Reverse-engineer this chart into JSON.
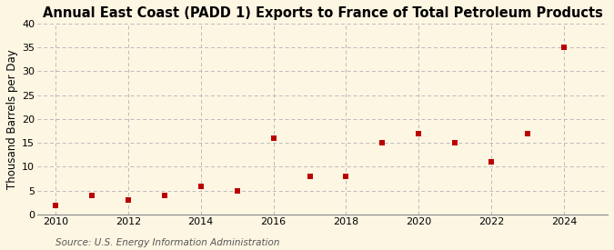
{
  "title": "Annual East Coast (PADD 1) Exports to France of Total Petroleum Products",
  "ylabel": "Thousand Barrels per Day",
  "source": "Source: U.S. Energy Information Administration",
  "x": [
    2010,
    2011,
    2012,
    2013,
    2014,
    2015,
    2016,
    2017,
    2018,
    2019,
    2020,
    2021,
    2022,
    2023,
    2024
  ],
  "y": [
    2.0,
    4.0,
    3.0,
    4.0,
    6.0,
    5.0,
    16.0,
    8.0,
    8.0,
    15.0,
    17.0,
    15.0,
    11.0,
    17.0,
    35.0
  ],
  "marker_color": "#bb0000",
  "marker": "s",
  "marker_size": 4,
  "ylim": [
    0,
    40
  ],
  "yticks": [
    0,
    5,
    10,
    15,
    20,
    25,
    30,
    35,
    40
  ],
  "xlim": [
    2009.5,
    2025.2
  ],
  "xticks": [
    2010,
    2012,
    2014,
    2016,
    2018,
    2020,
    2022,
    2024
  ],
  "background_color": "#fdf6e3",
  "plot_bg_color": "#fdf6e3",
  "grid_color": "#bbbbbb",
  "title_fontsize": 10.5,
  "label_fontsize": 8.5,
  "tick_fontsize": 8,
  "source_fontsize": 7.5
}
